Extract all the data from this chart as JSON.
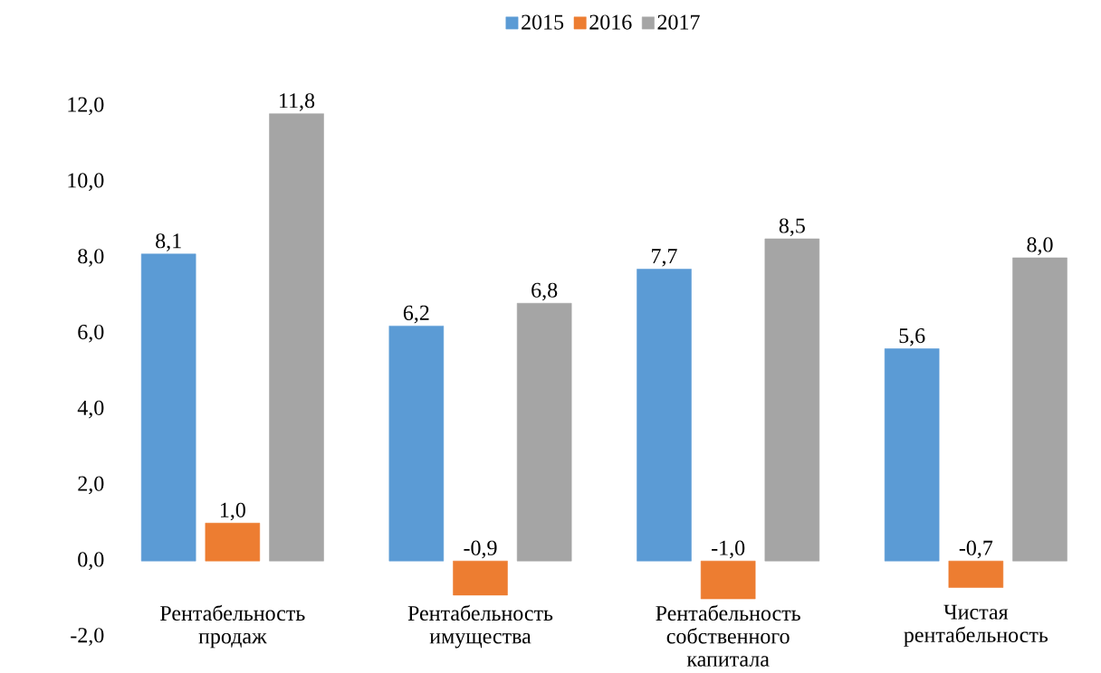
{
  "chart_data": {
    "type": "bar",
    "categories": [
      "Рентабельность продаж",
      "Рентабельность имущества",
      "Рентабельность собственного капитала",
      "Чистая рентабельность"
    ],
    "series": [
      {
        "name": "2015",
        "color": "#5b9bd5",
        "values": [
          8.1,
          6.2,
          7.7,
          5.6
        ],
        "value_labels": [
          "8,1",
          "6,2",
          "7,7",
          "5,6"
        ]
      },
      {
        "name": "2016",
        "color": "#ed7d31",
        "values": [
          1.0,
          -0.9,
          -1.0,
          -0.7
        ],
        "value_labels": [
          "1,0",
          "-0,9",
          "-1,0",
          "-0,7"
        ]
      },
      {
        "name": "2017",
        "color": "#a5a5a5",
        "values": [
          11.8,
          6.8,
          8.5,
          8.0
        ],
        "value_labels": [
          "11,8",
          "6,8",
          "8,5",
          "8,0"
        ]
      }
    ],
    "ylim": [
      -2,
      12
    ],
    "yticks": [
      {
        "value": -2,
        "label": "-2,0"
      },
      {
        "value": 0,
        "label": "0,0"
      },
      {
        "value": 2,
        "label": "2,0"
      },
      {
        "value": 4,
        "label": "4,0"
      },
      {
        "value": 6,
        "label": "6,0"
      },
      {
        "value": 8,
        "label": "8,0"
      },
      {
        "value": 10,
        "label": "10,0"
      },
      {
        "value": 12,
        "label": "12,0"
      }
    ],
    "legend": "top",
    "grid": false
  }
}
